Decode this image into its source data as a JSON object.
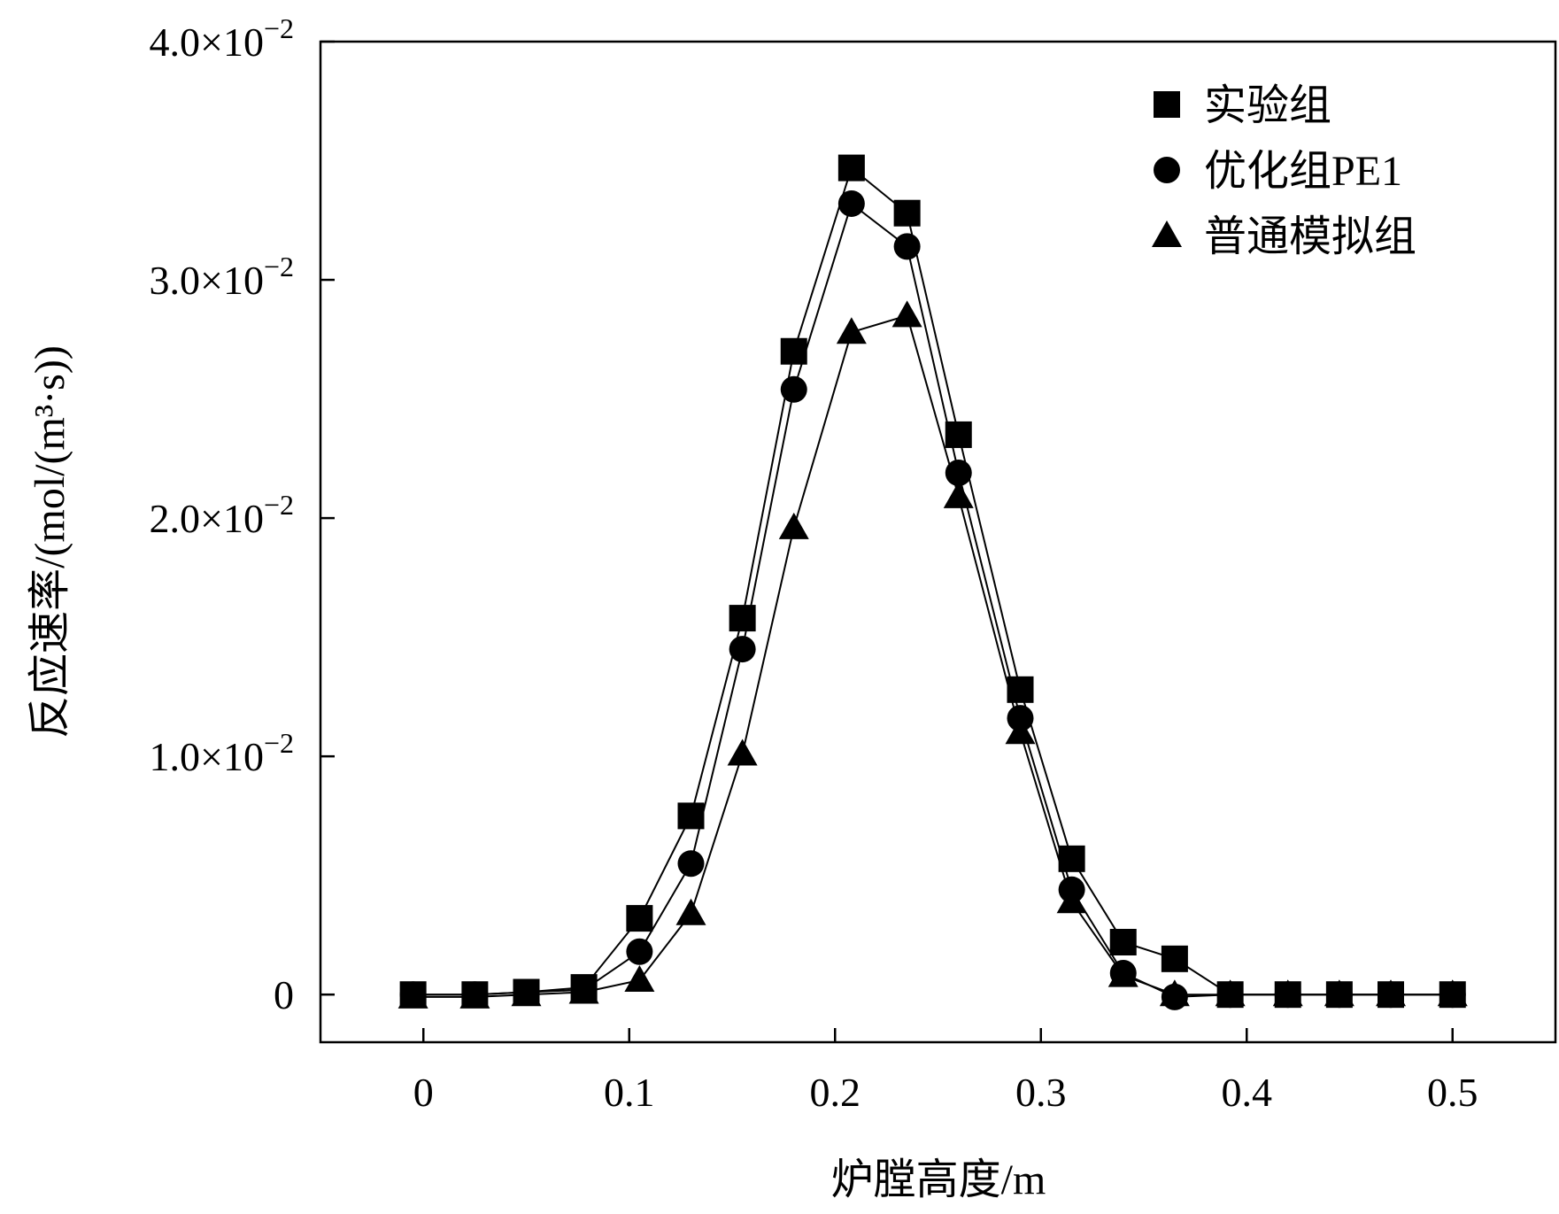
{
  "chart_data": {
    "type": "line",
    "title": "",
    "xlabel": "炉膛高度/m",
    "ylabel": "反应速率/(mol/(m³·s))",
    "xlim": [
      -0.05,
      0.55
    ],
    "ylim": [
      -0.002,
      0.04
    ],
    "x_ticks": [
      0,
      0.1,
      0.2,
      0.3,
      0.4,
      0.5
    ],
    "x_tick_labels": [
      "0",
      "0.1",
      "0.2",
      "0.3",
      "0.4",
      "0.5"
    ],
    "y_ticks": [
      0,
      0.01,
      0.02,
      0.03,
      0.04
    ],
    "y_tick_labels": [
      {
        "mantissa": "0",
        "exp": ""
      },
      {
        "mantissa": "1.0×10",
        "exp": "−2"
      },
      {
        "mantissa": "2.0×10",
        "exp": "−2"
      },
      {
        "mantissa": "3.0×10",
        "exp": "−2"
      },
      {
        "mantissa": "4.0×10",
        "exp": "−2"
      }
    ],
    "grid": false,
    "legend_position": "top-right",
    "series": [
      {
        "name": "实验组",
        "marker": "square",
        "points": [
          [
            -0.005,
            0.0
          ],
          [
            0.025,
            0.0
          ],
          [
            0.05,
            0.0001
          ],
          [
            0.078,
            0.0003
          ],
          [
            0.105,
            0.0032
          ],
          [
            0.13,
            0.0075
          ],
          [
            0.155,
            0.0158
          ],
          [
            0.18,
            0.027
          ],
          [
            0.208,
            0.0347
          ],
          [
            0.235,
            0.0328
          ],
          [
            0.26,
            0.0235
          ],
          [
            0.29,
            0.0128
          ],
          [
            0.315,
            0.0057
          ],
          [
            0.34,
            0.0022
          ],
          [
            0.365,
            0.0015
          ],
          [
            0.392,
            0.0
          ],
          [
            0.42,
            0.0
          ],
          [
            0.445,
            0.0
          ],
          [
            0.47,
            0.0
          ],
          [
            0.5,
            0.0
          ]
        ]
      },
      {
        "name": "优化组PE1",
        "marker": "circle",
        "points": [
          [
            -0.005,
            0.0
          ],
          [
            0.025,
            0.0
          ],
          [
            0.05,
            0.0001
          ],
          [
            0.078,
            0.0002
          ],
          [
            0.105,
            0.0018
          ],
          [
            0.13,
            0.0055
          ],
          [
            0.155,
            0.0145
          ],
          [
            0.18,
            0.0254
          ],
          [
            0.208,
            0.0332
          ],
          [
            0.235,
            0.0314
          ],
          [
            0.26,
            0.0219
          ],
          [
            0.29,
            0.0116
          ],
          [
            0.315,
            0.0044
          ],
          [
            0.34,
            0.0009
          ],
          [
            0.365,
            -0.0001
          ],
          [
            0.392,
            0.0
          ],
          [
            0.42,
            0.0
          ],
          [
            0.445,
            0.0
          ],
          [
            0.47,
            0.0
          ],
          [
            0.5,
            0.0
          ]
        ]
      },
      {
        "name": "普通模拟组",
        "marker": "triangle",
        "points": [
          [
            -0.005,
            -0.0001
          ],
          [
            0.025,
            -0.0001
          ],
          [
            0.05,
            0.0
          ],
          [
            0.078,
            0.0001
          ],
          [
            0.105,
            0.0006
          ],
          [
            0.13,
            0.0034
          ],
          [
            0.155,
            0.0101
          ],
          [
            0.18,
            0.0196
          ],
          [
            0.208,
            0.0278
          ],
          [
            0.235,
            0.0285
          ],
          [
            0.26,
            0.0209
          ],
          [
            0.29,
            0.011
          ],
          [
            0.315,
            0.0039
          ],
          [
            0.34,
            0.0008
          ],
          [
            0.365,
            0.0
          ],
          [
            0.392,
            0.0
          ],
          [
            0.42,
            0.0
          ],
          [
            0.445,
            0.0
          ],
          [
            0.47,
            0.0
          ],
          [
            0.5,
            0.0
          ]
        ]
      }
    ]
  }
}
